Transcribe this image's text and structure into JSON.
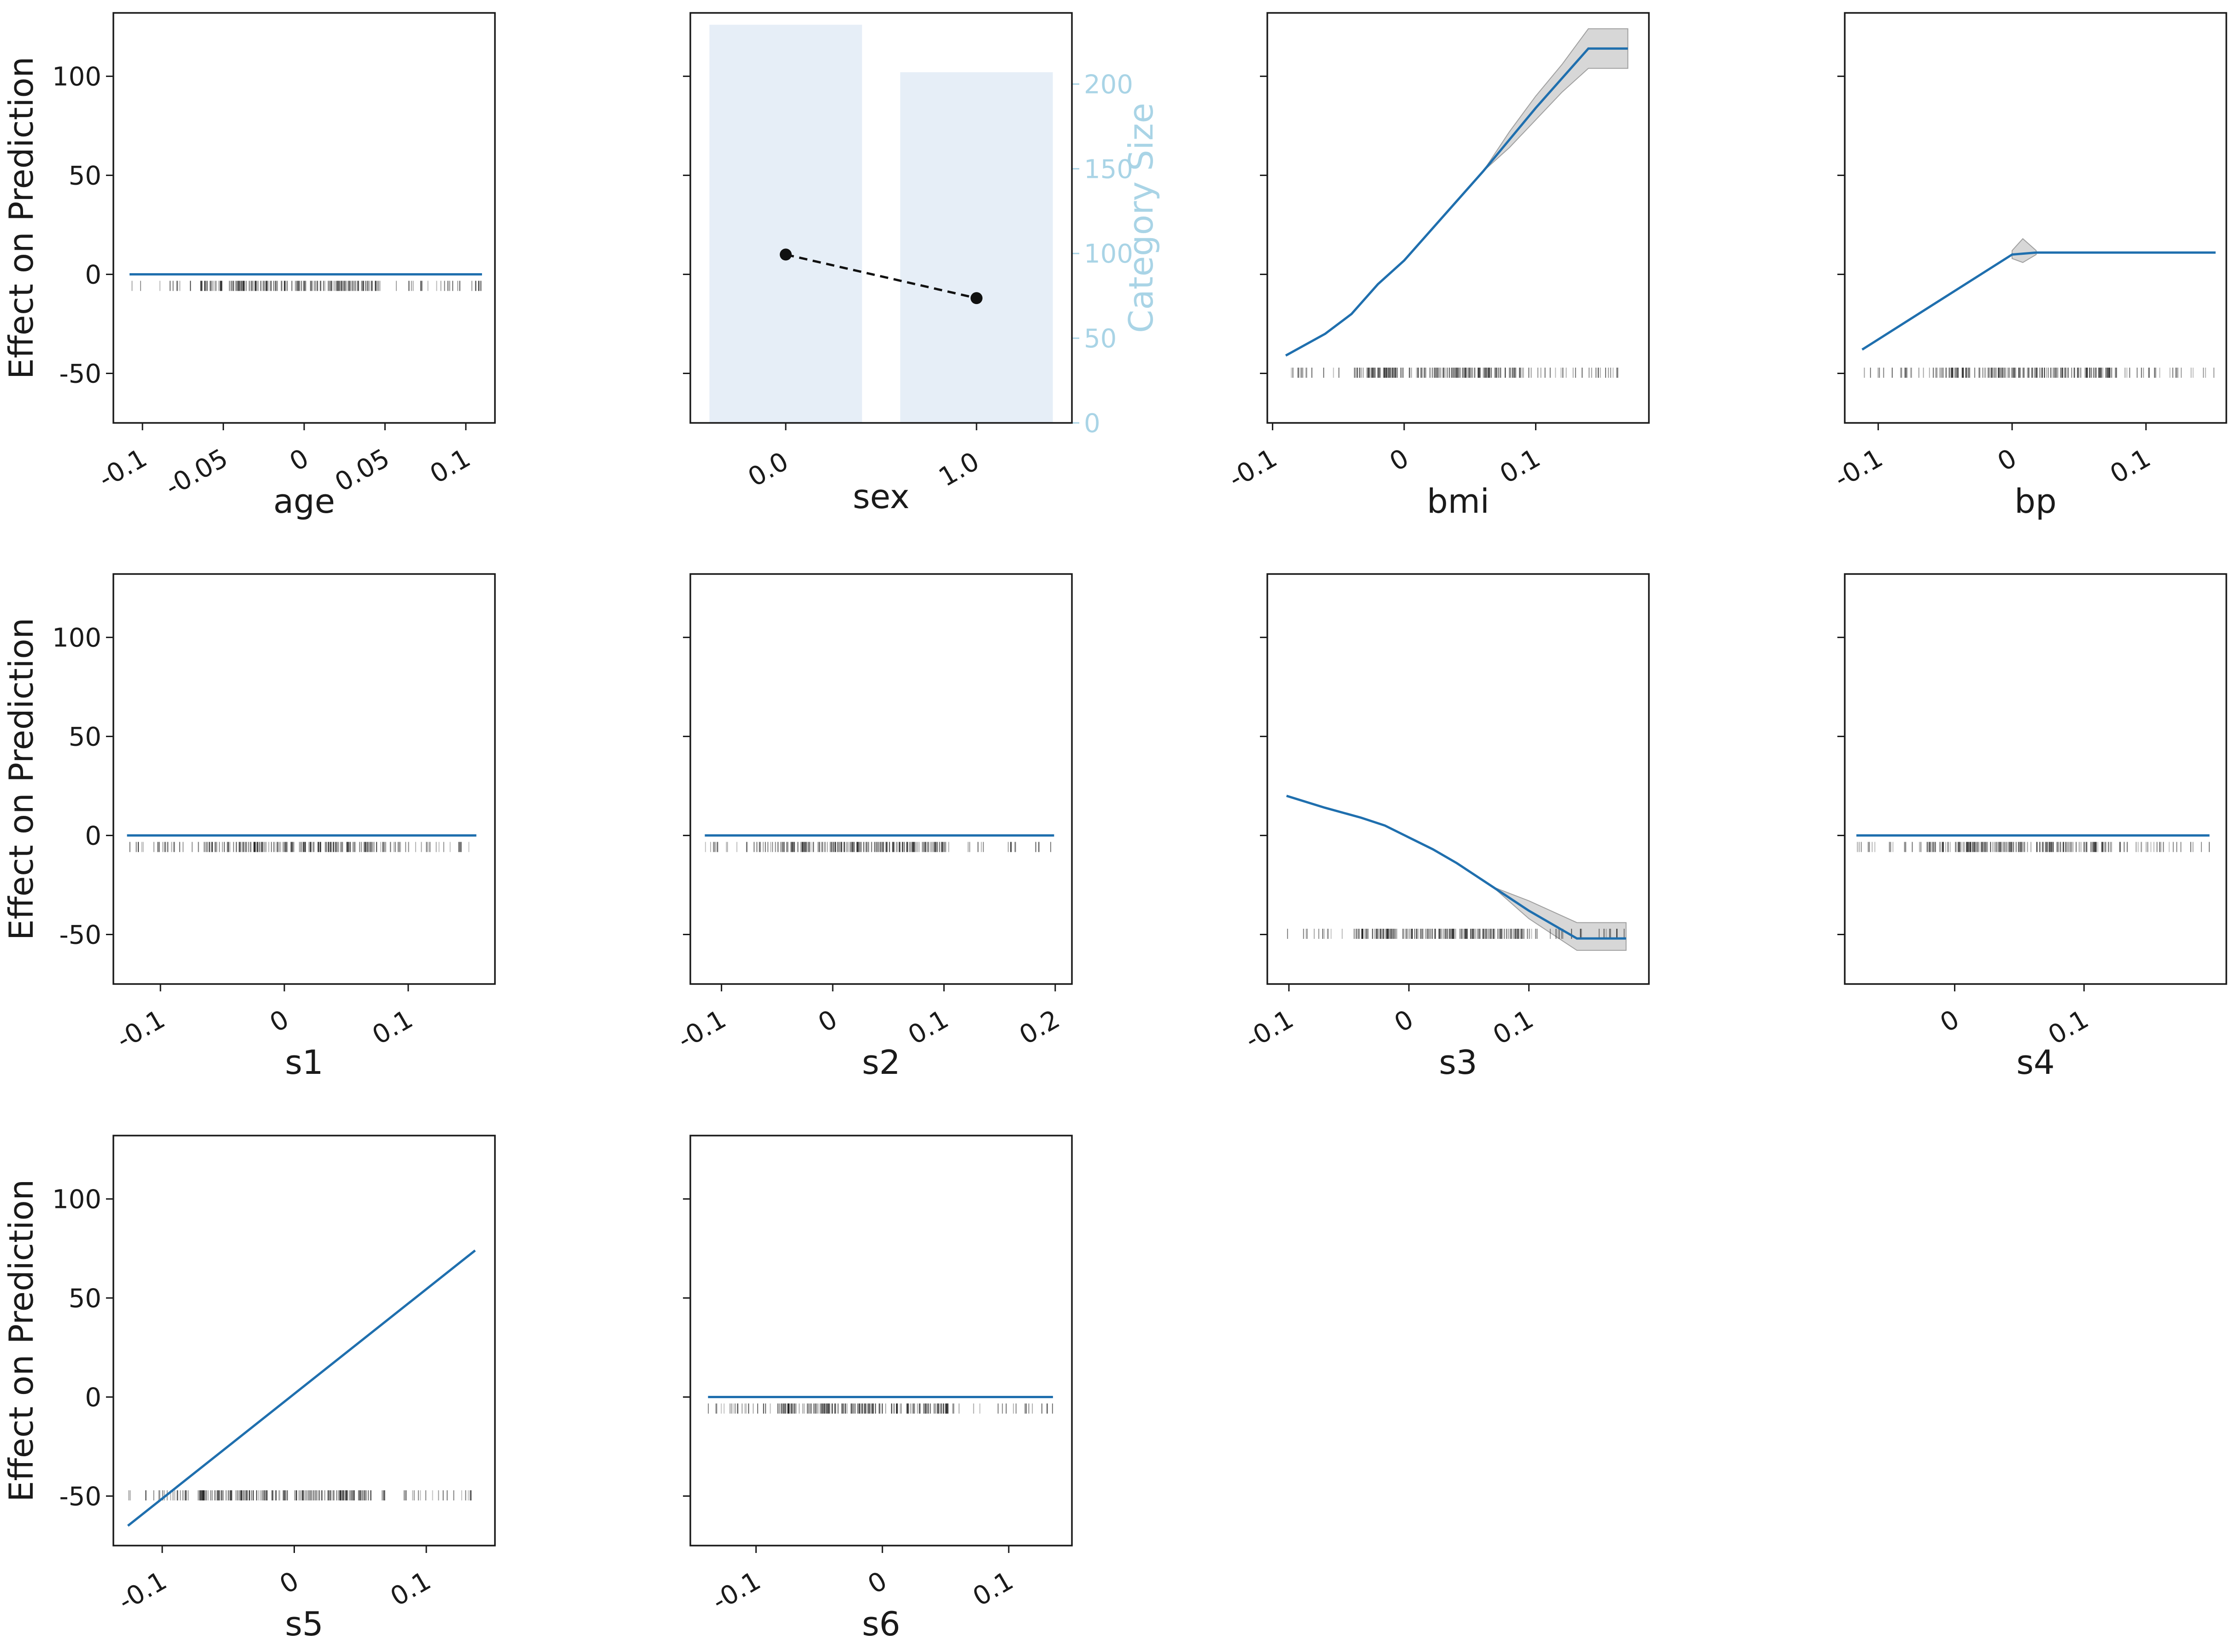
{
  "colors": {
    "line": "#1f6fae",
    "band": "#bdbdbd",
    "rug": "#111111",
    "bar": "#e6eef7",
    "secondary_axis": "#a9d4e6",
    "marker": "#111111"
  },
  "shared_y": {
    "label": "Effect on Prediction",
    "ticks": [
      -50,
      0,
      50,
      100
    ],
    "tick_labels": [
      "-50",
      "0",
      "50",
      "100"
    ],
    "ylim": [
      -75,
      132
    ]
  },
  "chart_data": [
    {
      "type": "line",
      "feature": "age",
      "xlabel": "age",
      "xlim": [
        -0.118,
        0.118
      ],
      "x_ticks": [
        -0.1,
        -0.05,
        0,
        0.05,
        0.1
      ],
      "x_tick_labels": [
        "-0.1",
        "-0.05",
        "0",
        "0.05",
        "0.1"
      ],
      "show_y_tick_labels": true,
      "show_ylabel": true,
      "line": [
        [
          -0.108,
          0
        ],
        [
          0.11,
          0
        ]
      ],
      "band": [],
      "rug_range": [
        -0.108,
        0.11
      ]
    },
    {
      "type": "bar",
      "feature": "sex",
      "xlabel": "sex",
      "categories": [
        "0.0",
        "1.0"
      ],
      "category_sizes": [
        235,
        207
      ],
      "effects": [
        10,
        -12
      ],
      "secondary_ylabel": "Category Size",
      "secondary_ticks": [
        0,
        50,
        100,
        150,
        200
      ],
      "secondary_tick_labels": [
        "0",
        "50",
        "100",
        "150",
        "200"
      ],
      "secondary_ylim": [
        0,
        242
      ],
      "show_y_tick_labels": false,
      "show_ylabel": false
    },
    {
      "type": "line",
      "feature": "bmi",
      "xlabel": "bmi",
      "xlim": [
        -0.104,
        0.186
      ],
      "x_ticks": [
        -0.1,
        0,
        0.1
      ],
      "x_tick_labels": [
        "-0.1",
        "0",
        "0.1"
      ],
      "show_y_tick_labels": false,
      "show_ylabel": false,
      "line": [
        [
          -0.09,
          -41
        ],
        [
          -0.06,
          -30
        ],
        [
          -0.04,
          -20
        ],
        [
          -0.02,
          -5
        ],
        [
          0,
          7
        ],
        [
          0.02,
          22
        ],
        [
          0.04,
          37
        ],
        [
          0.06,
          52
        ],
        [
          0.08,
          68
        ],
        [
          0.1,
          84
        ],
        [
          0.12,
          99
        ],
        [
          0.14,
          114
        ],
        [
          0.17,
          114
        ]
      ],
      "band": [
        [
          0.06,
          52,
          52
        ],
        [
          0.08,
          64,
          72
        ],
        [
          0.1,
          78,
          90
        ],
        [
          0.12,
          92,
          106
        ],
        [
          0.14,
          104,
          124
        ],
        [
          0.17,
          104,
          124
        ]
      ],
      "rug_range": [
        -0.09,
        0.17
      ]
    },
    {
      "type": "line",
      "feature": "bp",
      "xlabel": "bp",
      "xlim": [
        -0.125,
        0.16
      ],
      "x_ticks": [
        -0.1,
        0,
        0.1
      ],
      "x_tick_labels": [
        "-0.1",
        "0",
        "0.1"
      ],
      "show_y_tick_labels": false,
      "show_ylabel": false,
      "line": [
        [
          -0.112,
          -38
        ],
        [
          0.0,
          10
        ],
        [
          0.018,
          11
        ],
        [
          0.152,
          11
        ]
      ],
      "band": [
        [
          0.0,
          8,
          12
        ],
        [
          0.008,
          6,
          18
        ],
        [
          0.018,
          10,
          12
        ]
      ],
      "rug_range": [
        -0.112,
        0.152
      ]
    },
    {
      "type": "line",
      "feature": "s1",
      "xlabel": "s1",
      "xlim": [
        -0.138,
        0.17
      ],
      "x_ticks": [
        -0.1,
        0,
        0.1
      ],
      "x_tick_labels": [
        "-0.1",
        "0",
        "0.1"
      ],
      "show_y_tick_labels": true,
      "show_ylabel": true,
      "line": [
        [
          -0.127,
          0
        ],
        [
          0.155,
          0
        ]
      ],
      "band": [],
      "rug_range": [
        -0.127,
        0.155
      ]
    },
    {
      "type": "line",
      "feature": "s2",
      "xlabel": "s2",
      "xlim": [
        -0.128,
        0.215
      ],
      "x_ticks": [
        -0.1,
        0,
        0.1,
        0.2
      ],
      "x_tick_labels": [
        "-0.1",
        "0",
        "0.1",
        "0.2"
      ],
      "show_y_tick_labels": false,
      "show_ylabel": false,
      "line": [
        [
          -0.115,
          0
        ],
        [
          0.199,
          0
        ]
      ],
      "band": [],
      "rug_range": [
        -0.115,
        0.199
      ]
    },
    {
      "type": "line",
      "feature": "s3",
      "xlabel": "s3",
      "xlim": [
        -0.118,
        0.2
      ],
      "x_ticks": [
        -0.1,
        0,
        0.1
      ],
      "x_tick_labels": [
        "-0.1",
        "0",
        "0.1"
      ],
      "show_y_tick_labels": false,
      "show_ylabel": false,
      "line": [
        [
          -0.102,
          20
        ],
        [
          -0.07,
          14
        ],
        [
          -0.04,
          9
        ],
        [
          -0.02,
          5
        ],
        [
          0,
          -1
        ],
        [
          0.02,
          -7
        ],
        [
          0.04,
          -14
        ],
        [
          0.06,
          -22
        ],
        [
          0.08,
          -30
        ],
        [
          0.1,
          -38
        ],
        [
          0.12,
          -45
        ],
        [
          0.14,
          -52
        ],
        [
          0.181,
          -52
        ]
      ],
      "band": [
        [
          0.07,
          -26,
          -26
        ],
        [
          0.1,
          -33,
          -42
        ],
        [
          0.14,
          -44,
          -58
        ],
        [
          0.181,
          -44,
          -58
        ]
      ],
      "rug_range": [
        -0.102,
        0.181
      ]
    },
    {
      "type": "line",
      "feature": "s4",
      "xlabel": "s4",
      "xlim": [
        -0.085,
        0.21
      ],
      "x_ticks": [
        0,
        0.1
      ],
      "x_tick_labels": [
        "0",
        "0.1"
      ],
      "show_y_tick_labels": false,
      "show_ylabel": false,
      "line": [
        [
          -0.076,
          0
        ],
        [
          0.197,
          0
        ]
      ],
      "band": [],
      "rug_range": [
        -0.076,
        0.197
      ]
    },
    {
      "type": "line",
      "feature": "s5",
      "xlabel": "s5",
      "xlim": [
        -0.137,
        0.152
      ],
      "x_ticks": [
        -0.1,
        0,
        0.1
      ],
      "x_tick_labels": [
        "-0.1",
        "0",
        "0.1"
      ],
      "show_y_tick_labels": true,
      "show_ylabel": true,
      "line": [
        [
          -0.126,
          -65
        ],
        [
          0.137,
          74
        ]
      ],
      "band": [],
      "rug_range": [
        -0.126,
        0.137
      ]
    },
    {
      "type": "line",
      "feature": "s6",
      "xlabel": "s6",
      "xlim": [
        -0.152,
        0.15
      ],
      "x_ticks": [
        -0.1,
        0,
        0.1
      ],
      "x_tick_labels": [
        "-0.1",
        "0",
        "0.1"
      ],
      "show_y_tick_labels": false,
      "show_ylabel": false,
      "line": [
        [
          -0.138,
          0
        ],
        [
          0.135,
          0
        ]
      ],
      "band": [],
      "rug_range": [
        -0.138,
        0.135
      ]
    }
  ]
}
